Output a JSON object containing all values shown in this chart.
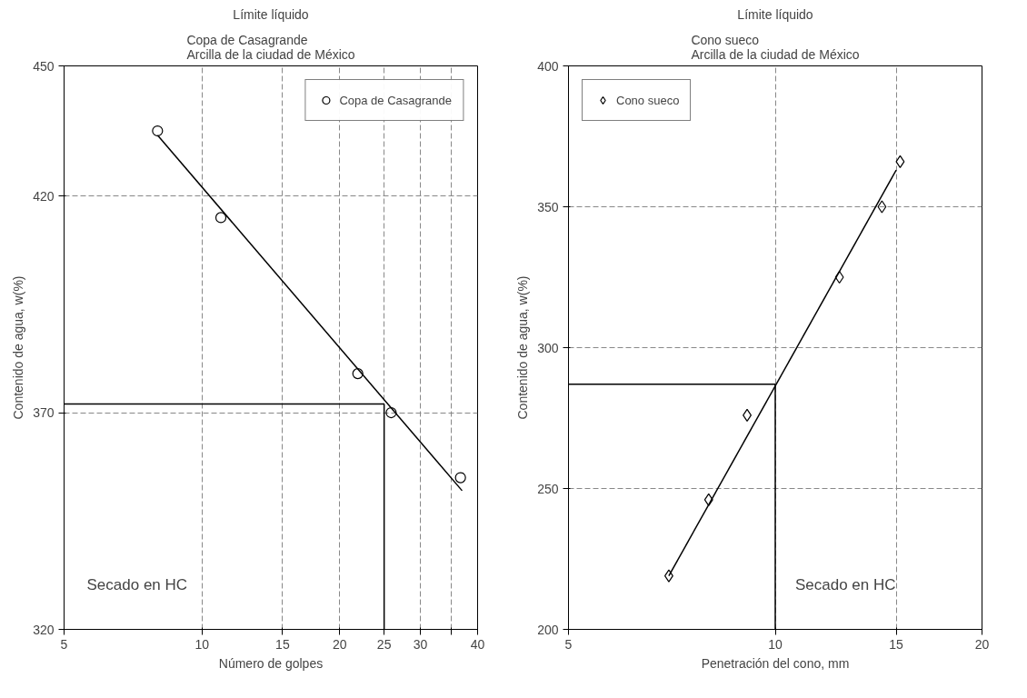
{
  "chart_data": [
    {
      "type": "scatter",
      "title": "Límite líquido",
      "subtitle": "Copa de Casagrande\nArcilla de la ciudad de México",
      "xlabel": "Número de golpes",
      "ylabel": "Contenido de agua, w(%)",
      "log": "x",
      "xlim": [
        5,
        40
      ],
      "xticks": [
        5,
        10,
        15,
        20,
        25,
        30,
        {
          "value": 35,
          "label": null
        },
        40
      ],
      "ylim": [
        320,
        450
      ],
      "yticks": [
        320,
        370,
        420,
        450
      ],
      "grid": true,
      "legend": "top right",
      "annotations": [
        "Secado en HC"
      ],
      "series": [
        {
          "name": "Copa de Casagrande",
          "marker": "circle",
          "color": "#000000",
          "x": [
            8.0,
            11.0,
            21.9,
            25.9,
            36.7
          ],
          "values": [
            435,
            415,
            379,
            370,
            355
          ]
        },
        {
          "type": "line",
          "color": "#000000",
          "x": [
            8.0,
            37.0
          ],
          "values": [
            434,
            352
          ]
        }
      ],
      "ref_lines": [
        {
          "axis": "x",
          "value": 25,
          "color": "#000000"
        },
        {
          "axis": "y",
          "value": 372,
          "color": "#000000"
        }
      ]
    },
    {
      "type": "scatter",
      "title": "Límite líquido",
      "subtitle": "Cono sueco\nArcilla de la ciudad de México",
      "xlabel": "Penetración del cono, mm",
      "ylabel": "Contenido de agua, w(%)",
      "log": "x",
      "xlim": [
        5,
        20
      ],
      "xticks": [
        5,
        10,
        15,
        20
      ],
      "ylim": [
        200,
        400
      ],
      "yticks": [
        200,
        250,
        300,
        350,
        400
      ],
      "grid": true,
      "legend": "top left",
      "annotations": [
        "Secado en HC"
      ],
      "series": [
        {
          "name": "Cono sueco",
          "marker": "diamond",
          "color": "#000000",
          "x": [
            7.0,
            8.0,
            9.1,
            12.4,
            14.3,
            15.2
          ],
          "values": [
            219,
            246,
            276,
            325,
            350,
            366
          ]
        },
        {
          "type": "line",
          "color": "#000000",
          "x": [
            7.0,
            15.0
          ],
          "values": [
            219,
            363
          ]
        }
      ],
      "ref_lines": [
        {
          "axis": "x",
          "value": 10,
          "color": "#000000"
        },
        {
          "axis": "y",
          "value": 287,
          "color": "#000000"
        }
      ]
    }
  ]
}
